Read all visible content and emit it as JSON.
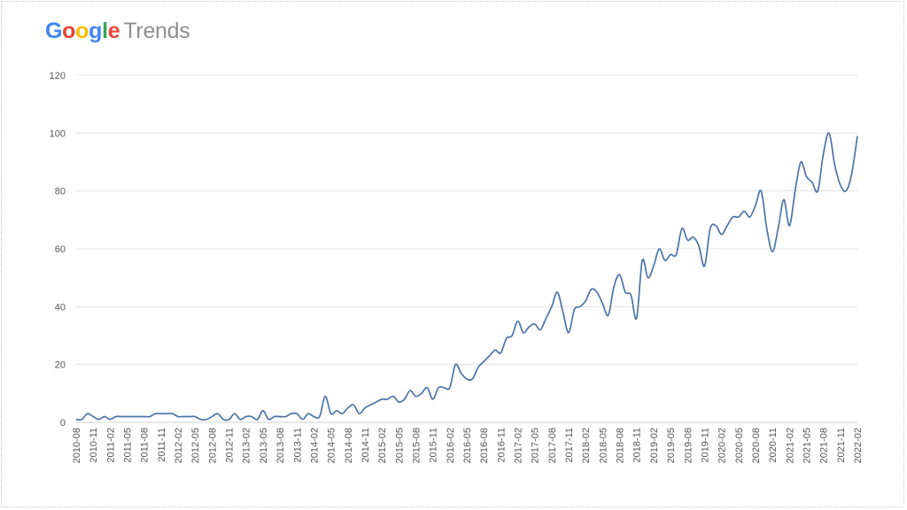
{
  "logo": {
    "brand": "Google",
    "product": "Trends",
    "brand_colors": [
      "#4285F4",
      "#EA4335",
      "#FBBC05",
      "#4285F4",
      "#34A853",
      "#EA4335"
    ]
  },
  "chart_data": {
    "type": "line",
    "title": "",
    "xlabel": "",
    "ylabel": "",
    "ylim": [
      0,
      120
    ],
    "yticks": [
      0,
      20,
      40,
      60,
      80,
      100,
      120
    ],
    "grid": true,
    "line_color": "#4a74a8",
    "xtick_labels": [
      "2010-08",
      "2010-11",
      "2011-02",
      "2011-05",
      "2011-08",
      "2011-11",
      "2012-02",
      "2012-05",
      "2012-08",
      "2012-11",
      "2013-02",
      "2013-05",
      "2013-08",
      "2013-11",
      "2014-02",
      "2014-05",
      "2014-08",
      "2014-11",
      "2015-02",
      "2015-05",
      "2015-08",
      "2015-11",
      "2016-02",
      "2016-05",
      "2016-08",
      "2016-11",
      "2017-02",
      "2017-05",
      "2017-08",
      "2017-11",
      "2018-02",
      "2018-05",
      "2018-08",
      "2018-11",
      "2019-02",
      "2019-05",
      "2019-08",
      "2019-11",
      "2020-02",
      "2020-05",
      "2020-08",
      "2020-11",
      "2021-02",
      "2021-05",
      "2021-08",
      "2021-11",
      "2022-02"
    ],
    "x": [
      "2010-08",
      "2010-09",
      "2010-10",
      "2010-11",
      "2010-12",
      "2011-01",
      "2011-02",
      "2011-03",
      "2011-04",
      "2011-05",
      "2011-06",
      "2011-07",
      "2011-08",
      "2011-09",
      "2011-10",
      "2011-11",
      "2011-12",
      "2012-01",
      "2012-02",
      "2012-03",
      "2012-04",
      "2012-05",
      "2012-06",
      "2012-07",
      "2012-08",
      "2012-09",
      "2012-10",
      "2012-11",
      "2012-12",
      "2013-01",
      "2013-02",
      "2013-03",
      "2013-04",
      "2013-05",
      "2013-06",
      "2013-07",
      "2013-08",
      "2013-09",
      "2013-10",
      "2013-11",
      "2013-12",
      "2014-01",
      "2014-02",
      "2014-03",
      "2014-04",
      "2014-05",
      "2014-06",
      "2014-07",
      "2014-08",
      "2014-09",
      "2014-10",
      "2014-11",
      "2014-12",
      "2015-01",
      "2015-02",
      "2015-03",
      "2015-04",
      "2015-05",
      "2015-06",
      "2015-07",
      "2015-08",
      "2015-09",
      "2015-10",
      "2015-11",
      "2015-12",
      "2016-01",
      "2016-02",
      "2016-03",
      "2016-04",
      "2016-05",
      "2016-06",
      "2016-07",
      "2016-08",
      "2016-09",
      "2016-10",
      "2016-11",
      "2016-12",
      "2017-01",
      "2017-02",
      "2017-03",
      "2017-04",
      "2017-05",
      "2017-06",
      "2017-07",
      "2017-08",
      "2017-09",
      "2017-10",
      "2017-11",
      "2017-12",
      "2018-01",
      "2018-02",
      "2018-03",
      "2018-04",
      "2018-05",
      "2018-06",
      "2018-07",
      "2018-08",
      "2018-09",
      "2018-10",
      "2018-11",
      "2018-12",
      "2019-01",
      "2019-02",
      "2019-03",
      "2019-04",
      "2019-05",
      "2019-06",
      "2019-07",
      "2019-08",
      "2019-09",
      "2019-10",
      "2019-11",
      "2019-12",
      "2020-01",
      "2020-02",
      "2020-03",
      "2020-04",
      "2020-05",
      "2020-06",
      "2020-07",
      "2020-08",
      "2020-09",
      "2020-10",
      "2020-11",
      "2020-12",
      "2021-01",
      "2021-02",
      "2021-03",
      "2021-04",
      "2021-05",
      "2021-06",
      "2021-07",
      "2021-08",
      "2021-09",
      "2021-10",
      "2021-11",
      "2021-12",
      "2022-01",
      "2022-02"
    ],
    "values": [
      1,
      1,
      3,
      2,
      1,
      2,
      1,
      2,
      2,
      2,
      2,
      2,
      2,
      2,
      3,
      3,
      3,
      3,
      2,
      2,
      2,
      2,
      1,
      1,
      2,
      3,
      1,
      1,
      3,
      1,
      2,
      2,
      1,
      4,
      1,
      2,
      2,
      2,
      3,
      3,
      1,
      3,
      2,
      2,
      9,
      3,
      4,
      3,
      5,
      6,
      3,
      5,
      6,
      7,
      8,
      8,
      9,
      7,
      8,
      11,
      9,
      10,
      12,
      8,
      12,
      12,
      12,
      20,
      17,
      15,
      15,
      19,
      21,
      23,
      25,
      24,
      29,
      30,
      35,
      31,
      33,
      34,
      32,
      36,
      40,
      45,
      38,
      31,
      39,
      40,
      42,
      46,
      45,
      41,
      37,
      47,
      51,
      45,
      44,
      36,
      56,
      50,
      54,
      60,
      56,
      58,
      58,
      67,
      63,
      64,
      61,
      54,
      67,
      68,
      65,
      68,
      71,
      71,
      73,
      71,
      75,
      80,
      67,
      59,
      67,
      77,
      68,
      80,
      90,
      85,
      83,
      80,
      93,
      100,
      89,
      82,
      80,
      86,
      99
    ]
  }
}
